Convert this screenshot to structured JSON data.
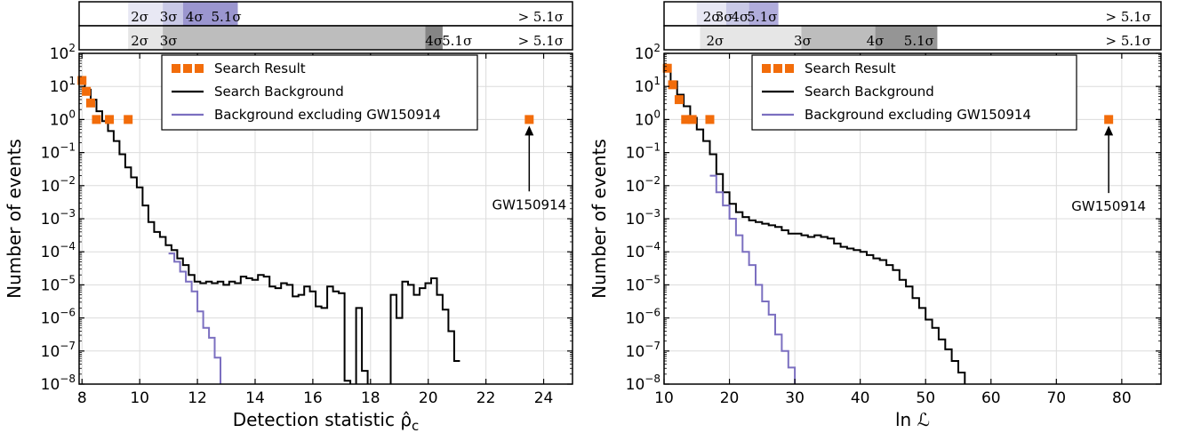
{
  "chart_data": [
    {
      "type": "line",
      "xlabel": "Detection statistic ρ̂",
      "xlabel_sub": "c",
      "ylabel": "Number of events",
      "xlim": [
        7.9,
        25.0
      ],
      "ylim_log10": [
        -8,
        2
      ],
      "yscale": "log",
      "grid": true,
      "xticks": [
        8,
        10,
        12,
        14,
        16,
        18,
        20,
        22,
        24
      ],
      "xtick_labels": [
        "8",
        "10",
        "12",
        "14",
        "16",
        "18",
        "20",
        "22",
        "24"
      ],
      "yticks_log10": [
        -8,
        -7,
        -6,
        -5,
        -4,
        -3,
        -2,
        -1,
        0,
        1,
        2
      ],
      "ytick_labels": [
        {
          "base": "10",
          "exp": "−8"
        },
        {
          "base": "10",
          "exp": "−7"
        },
        {
          "base": "10",
          "exp": "−6"
        },
        {
          "base": "10",
          "exp": "−5"
        },
        {
          "base": "10",
          "exp": "−4"
        },
        {
          "base": "10",
          "exp": "−3"
        },
        {
          "base": "10",
          "exp": "−2"
        },
        {
          "base": "10",
          "exp": "−1"
        },
        {
          "base": "10",
          "exp": "0"
        },
        {
          "base": "10",
          "exp": "1"
        },
        {
          "base": "10",
          "exp": "2"
        }
      ],
      "legend": {
        "placement": "top-center",
        "entries": [
          {
            "label": "Search Result",
            "style": "squares",
            "color": "#f26c0a"
          },
          {
            "label": "Search Background",
            "style": "line",
            "color": "#000000"
          },
          {
            "label": "Background excluding GW150914",
            "style": "line",
            "color": "#7b6fc0"
          }
        ]
      },
      "significance_bars": {
        "rows": [
          {
            "bands": [
              {
                "from": 7.9,
                "to": 9.6,
                "color": "#ffffff"
              },
              {
                "from": 9.6,
                "to": 10.8,
                "color": "#e8e8f4"
              },
              {
                "from": 10.8,
                "to": 11.5,
                "color": "#c9c9e6"
              },
              {
                "from": 11.5,
                "to": 13.4,
                "color": "#9b96cf"
              },
              {
                "from": 13.4,
                "to": 25.0,
                "color": "#ffffff"
              }
            ],
            "labels": [
              {
                "text": "2σ",
                "x": 10.0
              },
              {
                "text": "3σ",
                "x": 11.0
              },
              {
                "text": "4σ",
                "x": 11.9
              },
              {
                "text": "5.1σ",
                "x": 13.0
              },
              {
                "text": "> 5.1σ",
                "x": 23.9
              }
            ]
          },
          {
            "bands": [
              {
                "from": 7.9,
                "to": 9.6,
                "color": "#ffffff"
              },
              {
                "from": 9.6,
                "to": 10.8,
                "color": "#e6e6e6"
              },
              {
                "from": 10.8,
                "to": 19.9,
                "color": "#bdbdbd"
              },
              {
                "from": 19.9,
                "to": 20.5,
                "color": "#858585"
              },
              {
                "from": 20.5,
                "to": 25.0,
                "color": "#ffffff"
              }
            ],
            "labels": [
              {
                "text": "2σ",
                "x": 10.0
              },
              {
                "text": "3σ",
                "x": 11.0
              },
              {
                "text": "4σ",
                "x": 20.2
              },
              {
                "text": "5.1σ",
                "x": 21.0
              },
              {
                "text": "> 5.1σ",
                "x": 23.9
              }
            ]
          }
        ]
      },
      "annotation": {
        "text": "GW150914",
        "x": 23.5,
        "y_log10": 0,
        "text_y_log10": -2.55
      },
      "series": [
        {
          "name": "Search Result",
          "style": "squares",
          "color": "#f26c0a",
          "x": [
            8.0,
            8.15,
            8.3,
            8.5,
            8.95,
            9.6,
            23.5
          ],
          "y_log10": [
            1.18,
            0.85,
            0.5,
            0.0,
            0.0,
            0.0,
            0.0
          ]
        },
        {
          "name": "Search Background",
          "style": "step",
          "color": "#000000",
          "x": [
            7.9,
            8.1,
            8.3,
            8.5,
            8.7,
            8.9,
            9.1,
            9.3,
            9.5,
            9.7,
            9.9,
            10.1,
            10.3,
            10.5,
            10.7,
            10.9,
            11.1,
            11.3,
            11.5,
            11.7,
            11.9,
            12.1,
            12.3,
            12.5,
            12.7,
            12.9,
            13.1,
            13.3,
            13.5,
            13.7,
            13.9,
            14.1,
            14.3,
            14.5,
            14.7,
            14.9,
            15.1,
            15.3,
            15.5,
            15.7,
            15.9,
            16.1,
            16.3,
            16.5,
            16.7,
            16.9,
            17.1,
            17.3,
            17.5,
            17.7,
            17.9,
            18.1,
            18.3,
            18.5,
            18.7,
            18.9,
            19.1,
            19.3,
            19.5,
            19.7,
            19.9,
            20.1,
            20.3,
            20.5,
            20.7,
            20.9
          ],
          "y_log10": [
            1.15,
            0.9,
            0.6,
            0.25,
            -0.05,
            -0.35,
            -0.65,
            -1.05,
            -1.45,
            -1.75,
            -2.05,
            -2.6,
            -3.1,
            -3.4,
            -3.55,
            -3.8,
            -3.95,
            -4.2,
            -4.4,
            -4.7,
            -4.9,
            -4.95,
            -4.9,
            -4.95,
            -4.9,
            -5.0,
            -4.9,
            -4.95,
            -4.75,
            -4.8,
            -4.85,
            -4.7,
            -4.75,
            -5.05,
            -5.1,
            -4.95,
            -5.0,
            -5.35,
            -5.3,
            -5.05,
            -5.2,
            -5.65,
            -5.7,
            -5.05,
            -5.2,
            -5.25,
            -7.9,
            -8.2,
            -5.7,
            -7.6,
            -8.2,
            -8.2,
            -8.2,
            -8.2,
            -5.3,
            -6.0,
            -4.9,
            -5.0,
            -5.3,
            -5.1,
            -4.95,
            -4.8,
            -5.3,
            -5.75,
            -6.4,
            -7.3
          ]
        },
        {
          "name": "Background excluding GW150914",
          "style": "step",
          "color": "#7b6fc0",
          "x": [
            11.0,
            11.2,
            11.4,
            11.6,
            11.8,
            12.0,
            12.2,
            12.4,
            12.6,
            12.8
          ],
          "y_log10": [
            -4.05,
            -4.3,
            -4.6,
            -4.9,
            -5.2,
            -5.8,
            -6.3,
            -6.6,
            -7.2,
            -8.2
          ]
        }
      ]
    },
    {
      "type": "line",
      "xlabel": "ln ℒ",
      "ylabel": "Number of events",
      "xlim": [
        10.0,
        86.0
      ],
      "ylim_log10": [
        -8,
        2
      ],
      "yscale": "log",
      "grid": true,
      "xticks": [
        10,
        20,
        30,
        40,
        50,
        60,
        70,
        80
      ],
      "xtick_labels": [
        "10",
        "20",
        "30",
        "40",
        "50",
        "60",
        "70",
        "80"
      ],
      "yticks_log10": [
        -8,
        -7,
        -6,
        -5,
        -4,
        -3,
        -2,
        -1,
        0,
        1,
        2
      ],
      "ytick_labels": [
        {
          "base": "10",
          "exp": "−8"
        },
        {
          "base": "10",
          "exp": "−7"
        },
        {
          "base": "10",
          "exp": "−6"
        },
        {
          "base": "10",
          "exp": "−5"
        },
        {
          "base": "10",
          "exp": "−4"
        },
        {
          "base": "10",
          "exp": "−3"
        },
        {
          "base": "10",
          "exp": "−2"
        },
        {
          "base": "10",
          "exp": "−1"
        },
        {
          "base": "10",
          "exp": "0"
        },
        {
          "base": "10",
          "exp": "1"
        },
        {
          "base": "10",
          "exp": "2"
        }
      ],
      "legend": {
        "placement": "top-center",
        "entries": [
          {
            "label": "Search Result",
            "style": "squares",
            "color": "#f26c0a"
          },
          {
            "label": "Search Background",
            "style": "line",
            "color": "#000000"
          },
          {
            "label": "Background excluding GW150914",
            "style": "line",
            "color": "#7b6fc0"
          }
        ]
      },
      "significance_bars": {
        "rows": [
          {
            "bands": [
              {
                "from": 10.0,
                "to": 15.0,
                "color": "#ffffff"
              },
              {
                "from": 15.0,
                "to": 19.5,
                "color": "#e8e8f4"
              },
              {
                "from": 19.5,
                "to": 23.0,
                "color": "#c9c9e6"
              },
              {
                "from": 23.0,
                "to": 27.5,
                "color": "#b0acdb"
              },
              {
                "from": 27.5,
                "to": 86.0,
                "color": "#ffffff"
              }
            ],
            "labels": [
              {
                "text": "2σ",
                "x": 17.3
              },
              {
                "text": "3σ",
                "x": 19.2
              },
              {
                "text": "4σ",
                "x": 21.6
              },
              {
                "text": "5.1σ",
                "x": 25.0
              },
              {
                "text": "> 5.1σ",
                "x": 81.0
              }
            ]
          },
          {
            "bands": [
              {
                "from": 10.0,
                "to": 15.5,
                "color": "#ffffff"
              },
              {
                "from": 15.5,
                "to": 31.0,
                "color": "#e6e6e6"
              },
              {
                "from": 31.0,
                "to": 42.3,
                "color": "#bdbdbd"
              },
              {
                "from": 42.3,
                "to": 51.8,
                "color": "#959595"
              },
              {
                "from": 51.8,
                "to": 86.0,
                "color": "#ffffff"
              }
            ],
            "labels": [
              {
                "text": "2σ",
                "x": 17.8
              },
              {
                "text": "3σ",
                "x": 31.2
              },
              {
                "text": "4σ",
                "x": 42.3
              },
              {
                "text": "5.1σ",
                "x": 49.0
              },
              {
                "text": "> 5.1σ",
                "x": 81.0
              }
            ]
          }
        ]
      },
      "annotation": {
        "text": "GW150914",
        "x": 78.0,
        "y_log10": 0,
        "text_y_log10": -2.6
      },
      "series": [
        {
          "name": "Search Result",
          "style": "squares",
          "color": "#f26c0a",
          "x": [
            10.5,
            11.3,
            12.3,
            13.3,
            14.3,
            17.0,
            78.0
          ],
          "y_log10": [
            1.55,
            1.05,
            0.6,
            0.0,
            0.0,
            0.0,
            0.0
          ]
        },
        {
          "name": "Search Background",
          "style": "step",
          "color": "#000000",
          "x": [
            10.0,
            11.0,
            12.0,
            13.0,
            14.0,
            15.0,
            16.0,
            17.0,
            18.0,
            19.0,
            20.0,
            21.0,
            22.0,
            23.0,
            24.0,
            25.0,
            26.0,
            27.0,
            28.0,
            29.0,
            30.0,
            31.0,
            32.0,
            33.0,
            34.0,
            35.0,
            36.0,
            37.0,
            38.0,
            39.0,
            40.0,
            41.0,
            42.0,
            43.0,
            44.0,
            45.0,
            46.0,
            47.0,
            48.0,
            49.0,
            50.0,
            51.0,
            52.0,
            53.0,
            54.0,
            55.0,
            56.0
          ],
          "y_log10": [
            1.55,
            1.15,
            0.75,
            0.4,
            0.05,
            -0.3,
            -0.65,
            -1.05,
            -1.65,
            -2.2,
            -2.55,
            -2.8,
            -2.95,
            -3.05,
            -3.1,
            -3.15,
            -3.2,
            -3.25,
            -3.35,
            -3.45,
            -3.45,
            -3.5,
            -3.55,
            -3.5,
            -3.55,
            -3.6,
            -3.75,
            -3.85,
            -3.9,
            -3.95,
            -4.0,
            -4.1,
            -4.2,
            -4.25,
            -4.4,
            -4.55,
            -4.85,
            -5.05,
            -5.4,
            -5.7,
            -6.05,
            -6.3,
            -6.65,
            -6.95,
            -7.3,
            -7.65,
            -8.2
          ]
        },
        {
          "name": "Background excluding GW150914",
          "style": "step",
          "color": "#7b6fc0",
          "x": [
            17.0,
            18.0,
            19.0,
            20.0,
            21.0,
            22.0,
            23.0,
            24.0,
            25.0,
            26.0,
            27.0,
            28.0,
            29.0,
            30.0
          ],
          "y_log10": [
            -1.7,
            -2.2,
            -2.6,
            -3.0,
            -3.5,
            -4.0,
            -4.4,
            -5.0,
            -5.5,
            -5.9,
            -6.5,
            -7.0,
            -7.5,
            -8.2
          ]
        }
      ]
    }
  ]
}
